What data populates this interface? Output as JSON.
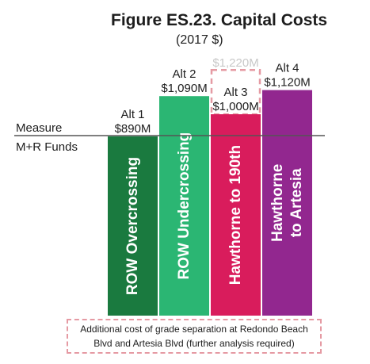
{
  "chart_data": {
    "type": "bar",
    "title": "Figure ES.23. Capital Costs",
    "subtitle": "(2017 $)",
    "reference_line": {
      "label_line1": "Measure",
      "label_line2": "M+R Funds"
    },
    "categories": [
      "Alt 1",
      "Alt 2",
      "Alt 3",
      "Alt 4"
    ],
    "bars": [
      {
        "name": "Alt 1",
        "value_label": "$890M",
        "value": 890,
        "inner_label": "ROW Overcrossing",
        "color": "#1a7a3f"
      },
      {
        "name": "Alt 2",
        "value_label": "$1,090M",
        "value": 1090,
        "inner_label": "ROW Undercrossing",
        "color": "#2bb673"
      },
      {
        "name": "Alt 3",
        "value_label": "$1,000M",
        "value": 1000,
        "inner_label": "Hawthorne to 190th",
        "color": "#d91c5c",
        "additional": {
          "label": "$1,220M",
          "value": 1220,
          "color": "#e59aa3"
        }
      },
      {
        "name": "Alt 4",
        "value_label": "$1,120M",
        "value": 1120,
        "inner_label": "Hawthorne\nto Artesia",
        "color": "#92278f"
      }
    ]
  },
  "note": {
    "line1": "Additional cost of grade separation at Redondo Beach",
    "line2": "Blvd and Artesia Blvd (further analysis required)"
  }
}
